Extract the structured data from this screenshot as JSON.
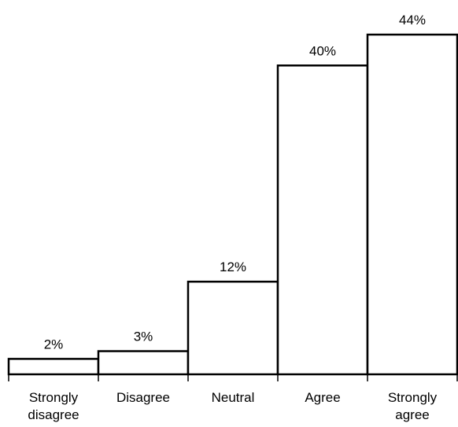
{
  "chart_data": {
    "type": "bar",
    "categories": [
      "Strongly disagree",
      "Disagree",
      "Neutral",
      "Agree",
      "Strongly agree"
    ],
    "category_lines": [
      [
        "Strongly",
        "disagree"
      ],
      [
        "Disagree"
      ],
      [
        "Neutral"
      ],
      [
        "Agree"
      ],
      [
        "Strongly",
        "agree"
      ]
    ],
    "values": [
      2,
      3,
      12,
      40,
      44
    ],
    "data_labels": [
      "2%",
      "3%",
      "12%",
      "40%",
      "44%"
    ],
    "unit": "%",
    "ylim": [
      0,
      44
    ],
    "grid": false,
    "legend": "none",
    "bar_fill": "#ffffff",
    "bar_stroke": "#000000"
  }
}
